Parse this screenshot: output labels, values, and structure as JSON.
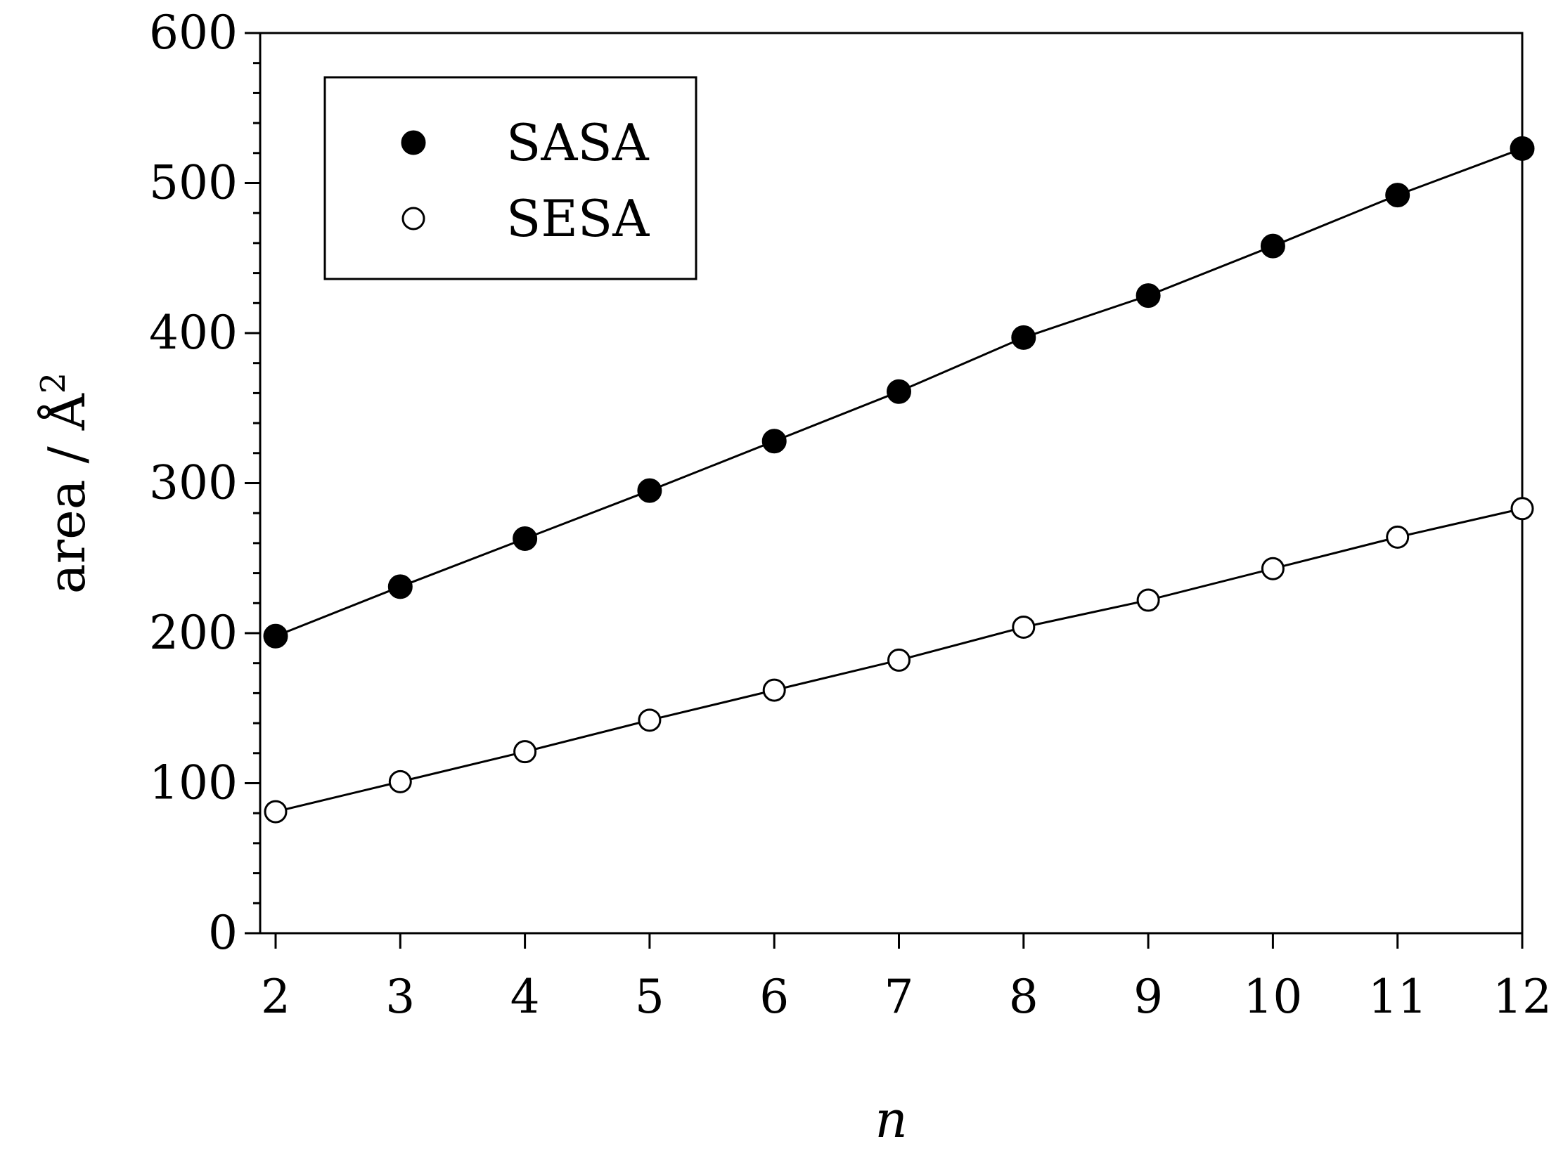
{
  "chart_data": {
    "type": "line",
    "title": "",
    "xlabel": "n",
    "ylabel": "area / Å",
    "ylabel_superscript": "2",
    "xlim": [
      2,
      12
    ],
    "ylim": [
      0,
      600
    ],
    "x_ticks": [
      2,
      3,
      4,
      5,
      6,
      7,
      8,
      9,
      10,
      11,
      12
    ],
    "y_ticks": [
      0,
      100,
      200,
      300,
      400,
      500,
      600
    ],
    "y_minor_step": 20,
    "grid": false,
    "legend_position": "top-left",
    "x": [
      2,
      3,
      4,
      5,
      6,
      7,
      8,
      9,
      10,
      11,
      12
    ],
    "series": [
      {
        "name": "SASA",
        "marker": "filled-circle",
        "color": "#000000",
        "values": [
          198,
          231,
          263,
          295,
          328,
          361,
          397,
          425,
          458,
          492,
          523
        ]
      },
      {
        "name": "SESA",
        "marker": "open-circle",
        "color": "#000000",
        "values": [
          81,
          101,
          121,
          142,
          162,
          182,
          204,
          222,
          243,
          264,
          283
        ]
      }
    ]
  }
}
